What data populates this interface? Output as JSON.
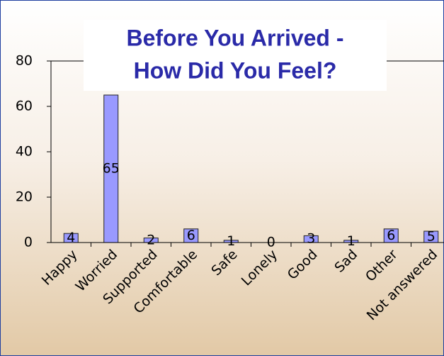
{
  "chart_data": {
    "type": "bar",
    "title": [
      "Before You Arrived -",
      "How Did  You Feel?"
    ],
    "categories": [
      "Happy",
      "Worried",
      "Supported",
      "Comfortable",
      "Safe",
      "Lonely",
      "Good",
      "Sad",
      "Other",
      "Not answered"
    ],
    "values": [
      4,
      65,
      2,
      6,
      1,
      0,
      3,
      1,
      6,
      5
    ],
    "color": "#9999ff",
    "ylim": [
      0,
      80
    ],
    "yticks": [
      0,
      20,
      40,
      60,
      80
    ],
    "grid": false
  }
}
